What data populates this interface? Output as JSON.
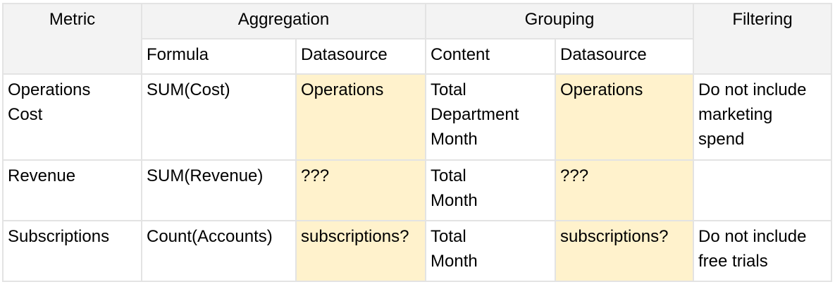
{
  "header": {
    "metric": "Metric",
    "aggregation": "Aggregation",
    "grouping": "Grouping",
    "filtering": "Filtering",
    "sub": {
      "formula": "Formula",
      "agg_datasource": "Datasource",
      "content": "Content",
      "group_datasource": "Datasource"
    }
  },
  "rows": [
    {
      "metric": [
        "Operations",
        "Cost"
      ],
      "formula": "SUM(Cost)",
      "agg_datasource": "Operations",
      "content": [
        "Total",
        "Department",
        "Month"
      ],
      "group_datasource": "Operations",
      "filtering": [
        "Do not include",
        "marketing",
        "spend"
      ]
    },
    {
      "metric": [
        "Revenue"
      ],
      "formula": "SUM(Revenue)",
      "agg_datasource": "???",
      "content": [
        "Total",
        "Month"
      ],
      "group_datasource": "???",
      "filtering": []
    },
    {
      "metric": [
        "Subscriptions"
      ],
      "formula": "Count(Accounts)",
      "agg_datasource": "subscriptions?",
      "content": [
        "Total",
        "Month"
      ],
      "group_datasource": "subscriptions?",
      "filtering": [
        "Do not include",
        "free trials"
      ]
    }
  ],
  "colors": {
    "header_bg": "#f3f3f3",
    "highlight_bg": "#fff2cc",
    "border": "#e3e3e3"
  }
}
